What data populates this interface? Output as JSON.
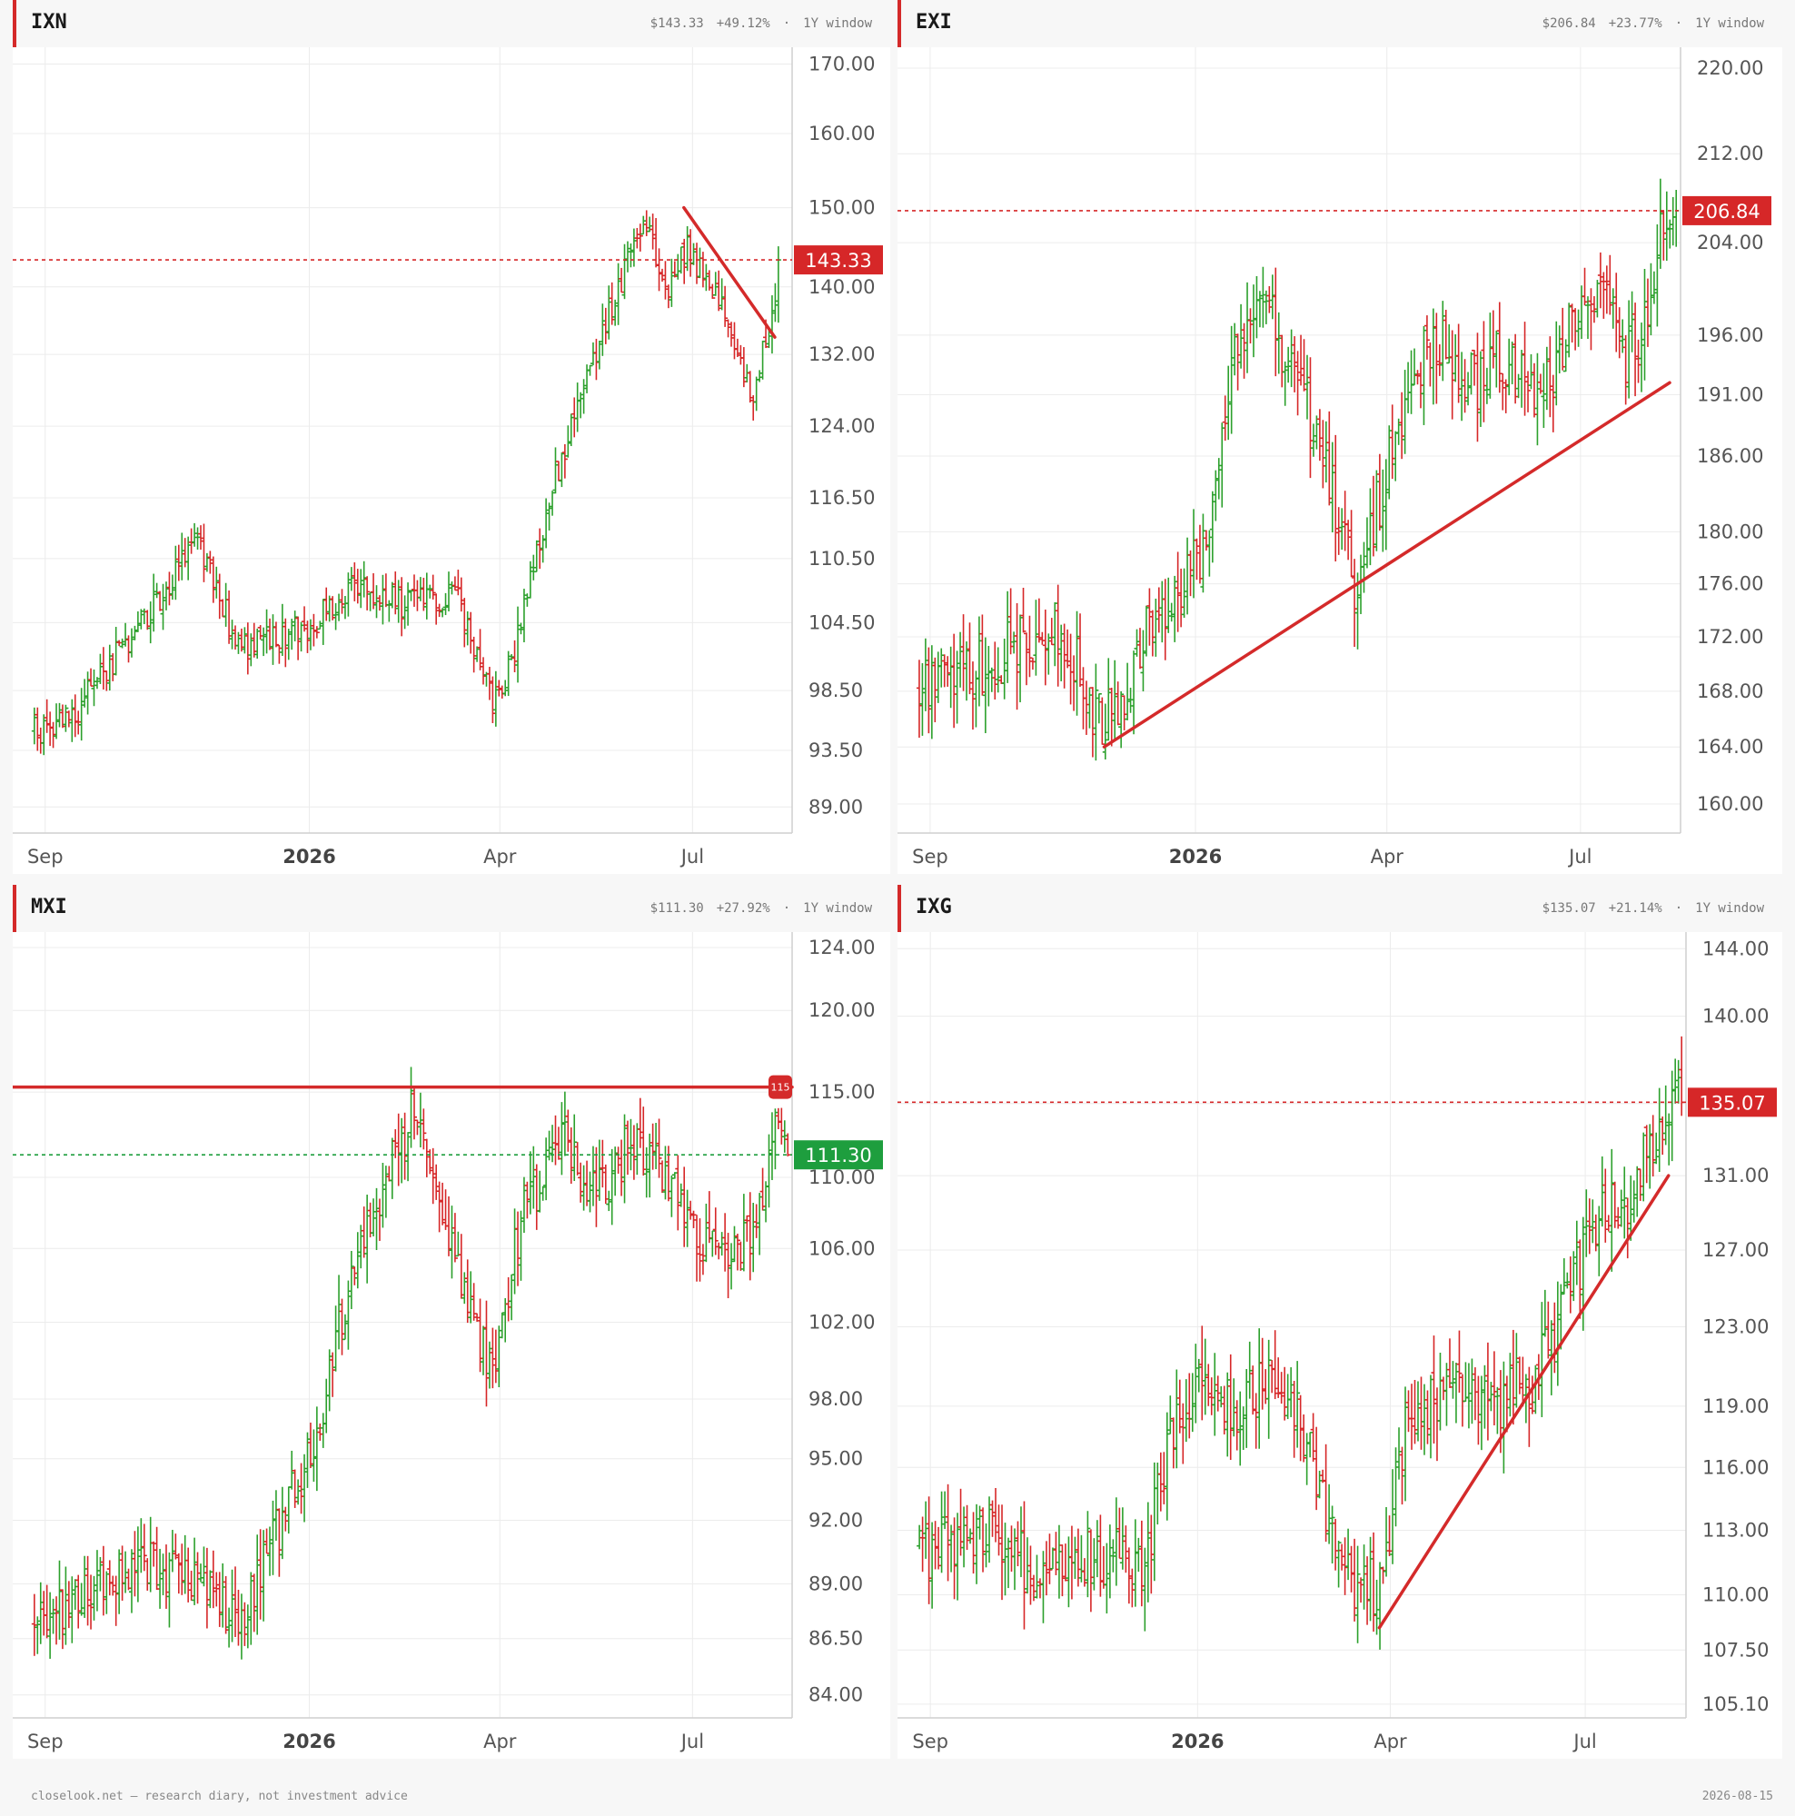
{
  "footer": {
    "left": "closelook.net — research diary, not investment advice",
    "right": "2026-08-15"
  },
  "colors": {
    "up": "#2ca02c",
    "down": "#d62728",
    "accent": "#d42a2a",
    "last_up": "#1e9e3e",
    "grid": "#ececec"
  },
  "panels": [
    {
      "ticker": "IXN",
      "price": "$143.33",
      "change": "+49.12%",
      "sep": "·",
      "window": "1Y window",
      "chart_data": {
        "type": "ohlc",
        "x_labels": [
          "Sep",
          "2026",
          "Apr",
          "Jul"
        ],
        "x_label_pos_days": [
          5,
          127,
          215,
          304
        ],
        "x_range_days": [
          -10,
          350
        ],
        "scale": "log",
        "y_ticks": [
          170.0,
          160.0,
          150.0,
          140.0,
          132.0,
          124.0,
          116.5,
          110.5,
          104.5,
          98.5,
          93.5,
          89.0
        ],
        "y_range": [
          87.0,
          172.5
        ],
        "last_price": 143.33,
        "last_label": "143.33",
        "last_color": "down",
        "anchors": [
          [
            0,
            95
          ],
          [
            20,
            97
          ],
          [
            55,
            106
          ],
          [
            75,
            112
          ],
          [
            95,
            102
          ],
          [
            125,
            104
          ],
          [
            150,
            108
          ],
          [
            170,
            106
          ],
          [
            195,
            107
          ],
          [
            212,
            97
          ],
          [
            222,
            102
          ],
          [
            240,
            118
          ],
          [
            262,
            134
          ],
          [
            282,
            149
          ],
          [
            292,
            140
          ],
          [
            302,
            145
          ],
          [
            318,
            137
          ],
          [
            332,
            127
          ],
          [
            345,
            143.3
          ]
        ],
        "trendlines": [
          {
            "from": [
              300,
              150
            ],
            "to": [
              342,
              134
            ],
            "style": "solid",
            "color": "accent"
          }
        ]
      }
    },
    {
      "ticker": "EXI",
      "price": "$206.84",
      "change": "+23.77%",
      "sep": "·",
      "window": "1Y window",
      "chart_data": {
        "type": "ohlc",
        "x_labels": [
          "Sep",
          "2026",
          "Apr",
          "Jul"
        ],
        "x_label_pos_days": [
          5,
          127,
          215,
          304
        ],
        "x_range_days": [
          -10,
          350
        ],
        "scale": "log",
        "y_ticks": [
          220.0,
          212.0,
          204.0,
          196.0,
          191.0,
          186.0,
          180.0,
          176.0,
          172.0,
          168.0,
          164.0,
          160.0
        ],
        "y_range": [
          158.0,
          222.0
        ],
        "last_price": 206.84,
        "last_label": "206.84",
        "last_color": "down",
        "anchors": [
          [
            0,
            168
          ],
          [
            30,
            170
          ],
          [
            65,
            173
          ],
          [
            85,
            165
          ],
          [
            110,
            174
          ],
          [
            130,
            178
          ],
          [
            145,
            195
          ],
          [
            160,
            198
          ],
          [
            175,
            192
          ],
          [
            188,
            184
          ],
          [
            200,
            176
          ],
          [
            212,
            183
          ],
          [
            225,
            192
          ],
          [
            240,
            196
          ],
          [
            255,
            192
          ],
          [
            268,
            194
          ],
          [
            285,
            190
          ],
          [
            300,
            197
          ],
          [
            315,
            201
          ],
          [
            325,
            194
          ],
          [
            335,
            197
          ],
          [
            340,
            204
          ],
          [
            348,
            206.8
          ]
        ],
        "trendlines": [
          {
            "from": [
              85,
              164
            ],
            "to": [
              345,
              192
            ],
            "style": "solid",
            "color": "accent"
          }
        ]
      }
    },
    {
      "ticker": "MXI",
      "price": "$111.30",
      "change": "+27.92%",
      "sep": "·",
      "window": "1Y window",
      "chart_data": {
        "type": "ohlc",
        "x_labels": [
          "Sep",
          "2026",
          "Apr",
          "Jul"
        ],
        "x_label_pos_days": [
          5,
          127,
          215,
          304
        ],
        "x_range_days": [
          -10,
          350
        ],
        "scale": "log",
        "y_ticks": [
          124.0,
          120.0,
          115.0,
          110.0,
          106.0,
          102.0,
          98.0,
          95.0,
          92.0,
          89.0,
          86.5,
          84.0
        ],
        "y_range": [
          83.0,
          125.0
        ],
        "last_price": 111.3,
        "last_label": "111.30",
        "last_color": "up",
        "resistance": 115.3,
        "resistance_label": "115",
        "anchors": [
          [
            0,
            87
          ],
          [
            25,
            89
          ],
          [
            55,
            90
          ],
          [
            80,
            89
          ],
          [
            95,
            87
          ],
          [
            110,
            91
          ],
          [
            130,
            96
          ],
          [
            145,
            104
          ],
          [
            160,
            109
          ],
          [
            175,
            114
          ],
          [
            185,
            109
          ],
          [
            200,
            103
          ],
          [
            212,
            99
          ],
          [
            225,
            108
          ],
          [
            245,
            112
          ],
          [
            260,
            109
          ],
          [
            275,
            112
          ],
          [
            290,
            110
          ],
          [
            305,
            107
          ],
          [
            320,
            105
          ],
          [
            335,
            108
          ],
          [
            343,
            113
          ],
          [
            348,
            111.3
          ]
        ],
        "trendlines": [
          {
            "from": [
              -10,
              115.3
            ],
            "to": [
              350,
              115.3
            ],
            "style": "solid",
            "color": "accent"
          }
        ]
      }
    },
    {
      "ticker": "IXG",
      "price": "$135.07",
      "change": "+21.14%",
      "sep": "·",
      "window": "1Y window",
      "chart_data": {
        "type": "ohlc",
        "x_labels": [
          "Sep",
          "2026",
          "Apr",
          "Jul"
        ],
        "x_label_pos_days": [
          5,
          127,
          215,
          304
        ],
        "x_range_days": [
          -10,
          350
        ],
        "scale": "log",
        "y_ticks": [
          144.0,
          140.0,
          135.0,
          131.0,
          127.0,
          123.0,
          119.0,
          116.0,
          113.0,
          110.0,
          107.5,
          105.1
        ],
        "y_range": [
          104.5,
          145.0
        ],
        "last_price": 135.07,
        "last_label": "135.07",
        "last_color": "down",
        "anchors": [
          [
            0,
            112
          ],
          [
            30,
            113
          ],
          [
            55,
            111
          ],
          [
            80,
            112
          ],
          [
            100,
            111
          ],
          [
            115,
            117
          ],
          [
            130,
            121
          ],
          [
            145,
            119
          ],
          [
            160,
            121
          ],
          [
            178,
            117
          ],
          [
            195,
            111
          ],
          [
            210,
            110
          ],
          [
            222,
            118
          ],
          [
            240,
            120
          ],
          [
            260,
            119
          ],
          [
            280,
            120
          ],
          [
            295,
            124
          ],
          [
            310,
            129
          ],
          [
            325,
            130
          ],
          [
            338,
            134
          ],
          [
            348,
            135.1
          ]
        ],
        "trendlines": [
          {
            "from": [
              210,
              108.5
            ],
            "to": [
              342,
              131
            ],
            "style": "solid",
            "color": "accent"
          }
        ]
      }
    }
  ]
}
